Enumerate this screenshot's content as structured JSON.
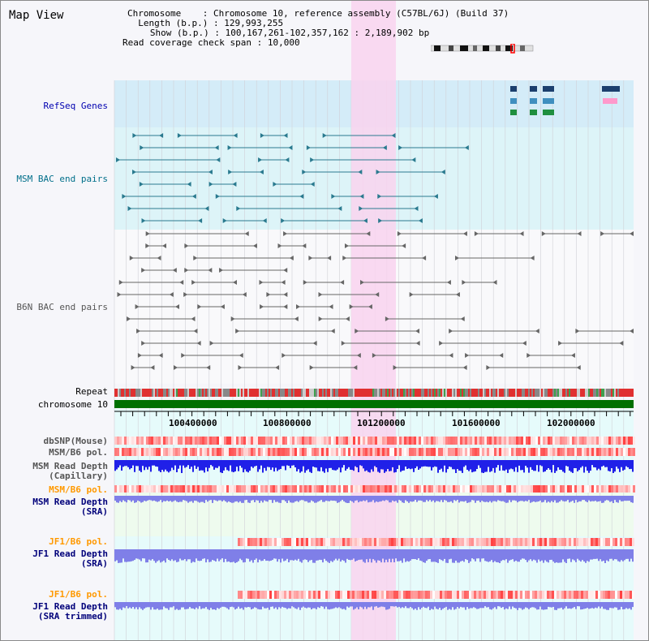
{
  "view_title": "Map View",
  "info": {
    "chromosome_label": "Chromosome",
    "chromosome_value": "Chromosome 10, reference assembly (C57BL/6J) (Build 37)",
    "length_label": "Length (b.p.)",
    "length_value": "129,993,255",
    "show_label": "Show (b.p.)",
    "show_value": "100,167,261-102,357,162 : 2,189,902 bp",
    "coverage_label": "Read coverage check span",
    "coverage_value": "10,000"
  },
  "tracks": {
    "refseq": "RefSeq Genes",
    "msm_bac": "MSM BAC end pairs",
    "b6n_bac": "B6N BAC end pairs",
    "repeat": "Repeat",
    "chromosome": "chromosome 10",
    "dbsnp": "dbSNP(Mouse)",
    "msm_b6_pol": "MSM/B6 pol.",
    "msm_depth_cap_1": "MSM Read Depth",
    "msm_depth_cap_2": "(Capillary)",
    "msm_b6_pol_sra": "MSM/B6 pol.",
    "msm_depth_sra_1": "MSM Read Depth",
    "msm_depth_sra_2": "(SRA)",
    "jf1_b6_pol": "JF1/B6 pol.",
    "jf1_depth_sra_1": "JF1 Read Depth",
    "jf1_depth_sra_2": "(SRA)",
    "jf1_b6_pol_trim": "JF1/B6 pol.",
    "jf1_depth_trim_1": "JF1 Read Depth",
    "jf1_depth_trim_2": "(SRA trimmed)"
  },
  "axis": {
    "ticks": [
      "100400000",
      "100800000",
      "101200000",
      "101600000",
      "102000000"
    ]
  },
  "colors": {
    "highlight": "#f9d4ee",
    "refseq_bg": "#d4ecf8",
    "msm_bg": "#ddf4f8",
    "cyan_bg": "#e6fbfb",
    "green_bg": "#eefbee",
    "chromosome_bar": "#007000",
    "msm_feature": "#2a7a8f",
    "b6n_feature": "#666666",
    "depth_blue": "#2020e8",
    "depth_violet": "#7f7fe8",
    "pol_red": "#ff3030"
  }
}
